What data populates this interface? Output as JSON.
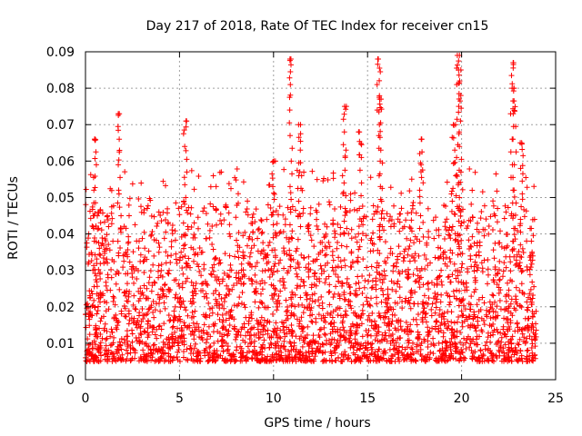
{
  "chart_data": {
    "type": "scatter",
    "title": "Day 217 of 2018, Rate Of TEC Index for receiver cn15",
    "xlabel": "GPS time / hours",
    "ylabel": "ROTI / TECUs",
    "xlim": [
      0,
      25
    ],
    "ylim": [
      0,
      0.09
    ],
    "x_ticks": [
      "0",
      "5",
      "10",
      "15",
      "20",
      "25"
    ],
    "y_ticks": [
      "0",
      "0.01",
      "0.02",
      "0.03",
      "0.04",
      "0.05",
      "0.06",
      "0.07",
      "0.08",
      "0.09"
    ],
    "grid": true,
    "marker": "+",
    "series": [
      {
        "name": "ROTI",
        "color": "#ff0000",
        "x_range_hours": [
          0,
          24
        ],
        "typical_range": [
          0.005,
          0.035
        ],
        "peaks": [
          {
            "x": 0.5,
            "y": 0.066
          },
          {
            "x": 1.8,
            "y": 0.073
          },
          {
            "x": 5.3,
            "y": 0.071
          },
          {
            "x": 10.0,
            "y": 0.06
          },
          {
            "x": 10.9,
            "y": 0.088
          },
          {
            "x": 11.4,
            "y": 0.07
          },
          {
            "x": 13.8,
            "y": 0.075
          },
          {
            "x": 14.6,
            "y": 0.068
          },
          {
            "x": 15.6,
            "y": 0.088
          },
          {
            "x": 15.7,
            "y": 0.077
          },
          {
            "x": 17.8,
            "y": 0.066
          },
          {
            "x": 19.6,
            "y": 0.07
          },
          {
            "x": 19.8,
            "y": 0.089
          },
          {
            "x": 19.9,
            "y": 0.085
          },
          {
            "x": 22.7,
            "y": 0.087
          },
          {
            "x": 22.8,
            "y": 0.08
          },
          {
            "x": 23.2,
            "y": 0.065
          }
        ]
      }
    ]
  }
}
